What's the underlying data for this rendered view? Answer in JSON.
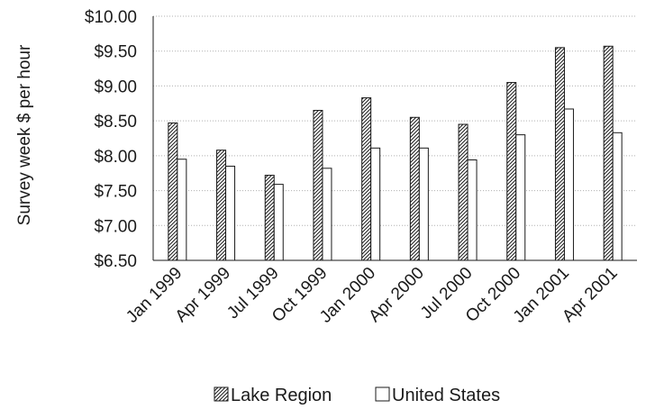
{
  "chart_data": {
    "type": "bar",
    "ylabel": "Survey week $ per hour",
    "xlabel": "",
    "ylim": [
      6.5,
      10.0
    ],
    "yticks": [
      6.5,
      7.0,
      7.5,
      8.0,
      8.5,
      9.0,
      9.5,
      10.0
    ],
    "ytick_labels": [
      "$6.50",
      "$7.00",
      "$7.50",
      "$8.00",
      "$8.50",
      "$9.00",
      "$9.50",
      "$10.00"
    ],
    "grid": "horizontal dotted",
    "legend_position": "bottom",
    "categories": [
      "Jan 1999",
      "Apr 1999",
      "Jul 1999",
      "Oct 1999",
      "Jan 2000",
      "Apr 2000",
      "Jul 2000",
      "Oct 2000",
      "Jan 2001",
      "Apr 2001"
    ],
    "series": [
      {
        "name": "Lake Region",
        "pattern": "diagonal-hatch",
        "values": [
          8.47,
          8.08,
          7.72,
          8.65,
          8.83,
          8.55,
          8.45,
          9.05,
          9.55,
          9.57
        ]
      },
      {
        "name": "United States",
        "pattern": "solid-white",
        "values": [
          7.95,
          7.85,
          7.59,
          7.82,
          8.11,
          8.11,
          7.94,
          8.3,
          8.67,
          8.33
        ]
      }
    ],
    "colors": {
      "bar_stroke": "#1a1a1a",
      "fill": "#ffffff",
      "grid": "#b0b0b0"
    }
  }
}
